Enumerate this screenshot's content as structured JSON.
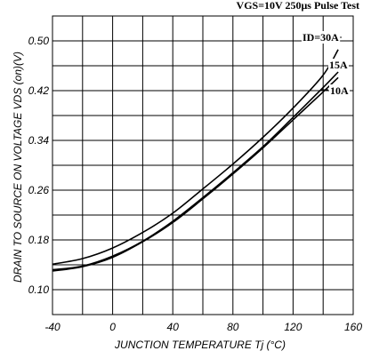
{
  "header_text": "VGS=10V  250μs Pulse Test",
  "chart_data": {
    "type": "line",
    "xlabel": "JUNCTION TEMPERATURE  Tj (°C)",
    "ylabel": "DRAIN TO SOURCE ON VOLTAGE  VDS (on)(V)",
    "xlim": [
      -40,
      160
    ],
    "ylim": [
      0.06,
      0.54
    ],
    "x_ticks": [
      -40,
      0,
      40,
      80,
      120,
      160
    ],
    "y_ticks": [
      0.1,
      0.18,
      0.26,
      0.34,
      0.42,
      0.5
    ],
    "x_tick_labels": [
      "-40",
      "0",
      "40",
      "80",
      "120",
      "160"
    ],
    "y_tick_labels": [
      "0.10",
      "0.18",
      "0.26",
      "0.34",
      "0.42",
      "0.50"
    ],
    "grid": true,
    "series": [
      {
        "name": "ID=30A",
        "x": [
          -40,
          -20,
          0,
          20,
          40,
          60,
          80,
          100,
          120,
          140,
          150
        ],
        "y": [
          0.141,
          0.15,
          0.167,
          0.192,
          0.223,
          0.262,
          0.302,
          0.345,
          0.392,
          0.445,
          0.486
        ]
      },
      {
        "name": "15A",
        "x": [
          -40,
          -20,
          0,
          20,
          40,
          60,
          80,
          100,
          120,
          140,
          150
        ],
        "y": [
          0.132,
          0.138,
          0.154,
          0.178,
          0.21,
          0.248,
          0.288,
          0.33,
          0.377,
          0.425,
          0.45
        ]
      },
      {
        "name": "10A",
        "x": [
          -40,
          -20,
          0,
          20,
          40,
          60,
          80,
          100,
          120,
          140,
          150
        ],
        "y": [
          0.13,
          0.137,
          0.152,
          0.177,
          0.208,
          0.246,
          0.286,
          0.328,
          0.373,
          0.418,
          0.441
        ]
      }
    ]
  }
}
